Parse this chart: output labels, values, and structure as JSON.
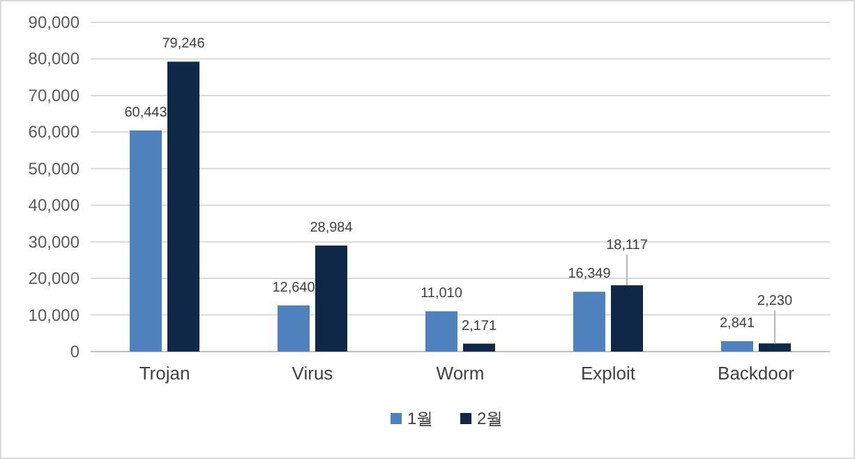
{
  "chart_data": {
    "type": "bar",
    "categories": [
      "Trojan",
      "Virus",
      "Worm",
      "Exploit",
      "Backdoor"
    ],
    "series": [
      {
        "name": "1월",
        "color": "#4f81bd",
        "values": [
          60443,
          12640,
          11010,
          16349,
          2841
        ],
        "value_labels": [
          "60,443",
          "12,640",
          "11,010",
          "16,349",
          "2,841"
        ]
      },
      {
        "name": "2월",
        "color": "#0f2847",
        "values": [
          79246,
          28984,
          2171,
          18117,
          2230
        ],
        "value_labels": [
          "79,246",
          "28,984",
          "2,171",
          "18,117",
          "2,230"
        ]
      }
    ],
    "ylim": [
      0,
      90000
    ],
    "yticks": [
      {
        "value": 0,
        "label": "0"
      },
      {
        "value": 10000,
        "label": "10,000"
      },
      {
        "value": 20000,
        "label": "20,000"
      },
      {
        "value": 30000,
        "label": "30,000"
      },
      {
        "value": 40000,
        "label": "40,000"
      },
      {
        "value": 50000,
        "label": "50,000"
      },
      {
        "value": 60000,
        "label": "60,000"
      },
      {
        "value": 70000,
        "label": "70,000"
      },
      {
        "value": 80000,
        "label": "80,000"
      },
      {
        "value": 90000,
        "label": "90,000"
      }
    ],
    "grid": "y",
    "legend": "bottom"
  }
}
